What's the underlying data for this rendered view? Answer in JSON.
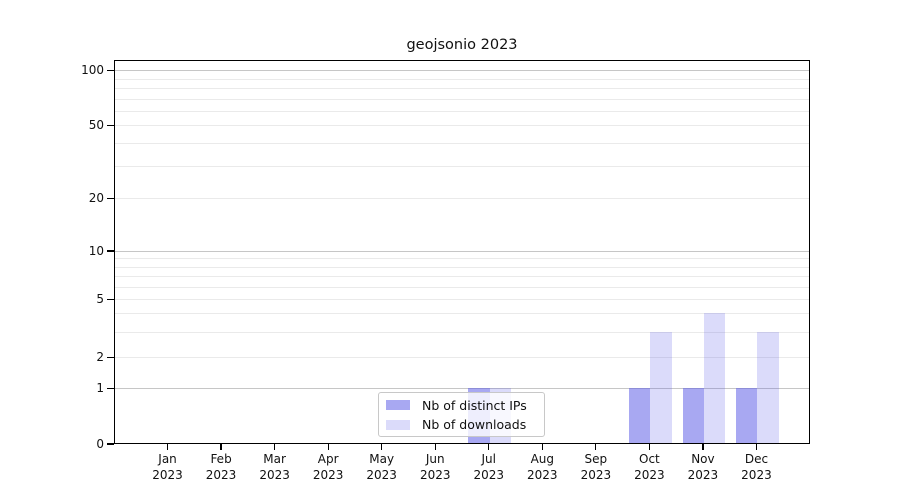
{
  "chart_data": {
    "type": "bar",
    "title": "geojsonio 2023",
    "categories": [
      "Jan",
      "Feb",
      "Mar",
      "Apr",
      "May",
      "Jun",
      "Jul",
      "Aug",
      "Sep",
      "Oct",
      "Nov",
      "Dec"
    ],
    "category_year": "2023",
    "series": [
      {
        "name": "Nb of distinct IPs",
        "color": "rgba(90,90,230,0.53)",
        "values": [
          0,
          0,
          0,
          0,
          0,
          0,
          1,
          0,
          0,
          1,
          1,
          1
        ]
      },
      {
        "name": "Nb of downloads",
        "color": "rgba(90,90,230,0.22)",
        "values": [
          0,
          0,
          0,
          0,
          0,
          0,
          1,
          0,
          0,
          3,
          4,
          3
        ]
      }
    ],
    "xlabel": "",
    "ylabel": "",
    "y_axis": {
      "scale": "symlog",
      "tick_labels": [
        0,
        1,
        2,
        5,
        10,
        20,
        50,
        100
      ],
      "major_gridlines": [
        1,
        10,
        100
      ],
      "minor_gridlines": [
        2,
        3,
        4,
        5,
        6,
        7,
        8,
        9,
        20,
        30,
        40,
        50,
        60,
        70,
        80,
        90
      ],
      "ylim": [
        0,
        114
      ]
    },
    "grid": true,
    "legend": {
      "position": "lower center",
      "entries": [
        "Nb of distinct IPs",
        "Nb of downloads"
      ]
    }
  },
  "colors": {
    "bar_base": "#5a5ae6",
    "major_grid": "#c6c6c6",
    "minor_grid": "#eaeaea",
    "axis": "#000000",
    "text": "#111111",
    "legend_border": "#c8c8c8"
  }
}
